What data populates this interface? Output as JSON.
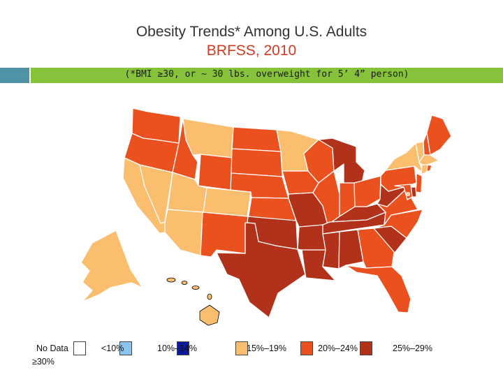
{
  "title": {
    "line1": "Obesity Trends* Among U.S. Adults",
    "line2": "BRFSS, 2010",
    "line2_color": "#d03a1f"
  },
  "subtitle": "(*BMI ≥30, or ~ 30 lbs. overweight for 5’ 4” person)",
  "colors": {
    "no_data": "#ffffff",
    "lt10": "#8cc4f0",
    "c10_14": "#0b1aa0",
    "c15_19": "#fbbd6e",
    "c20_24": "#eb501f",
    "c25_29": "#b1311a",
    "state_border": "#ffffff"
  },
  "legend": [
    {
      "label": "No Data",
      "class": "no_data"
    },
    {
      "label": "<10%",
      "class": "lt10"
    },
    {
      "label": "10%–14%",
      "class": "c10_14"
    },
    {
      "label": "15%–19%",
      "class": "c15_19"
    },
    {
      "label": "20%–24%",
      "class": "c20_24"
    },
    {
      "label": "25%–29%",
      "class": "c25_29"
    }
  ],
  "legend_note": "≥30%",
  "states": {
    "WA": "c20_24",
    "OR": "c20_24",
    "CA": "c15_19",
    "NV": "c15_19",
    "ID": "c20_24",
    "MT": "c15_19",
    "WY": "c20_24",
    "UT": "c15_19",
    "AZ": "c15_19",
    "CO": "c15_19",
    "NM": "c20_24",
    "ND": "c20_24",
    "SD": "c20_24",
    "NE": "c20_24",
    "KS": "c20_24",
    "OK": "c25_29",
    "TX": "c25_29",
    "MN": "c15_19",
    "IA": "c20_24",
    "MO": "c25_29",
    "AR": "c25_29",
    "LA": "c25_29",
    "WI": "c20_24",
    "IL": "c20_24",
    "MI": "c25_29",
    "IN": "c20_24",
    "OH": "c20_24",
    "KY": "c25_29",
    "TN": "c25_29",
    "MS": "c25_29",
    "AL": "c25_29",
    "GA": "c20_24",
    "FL": "c20_24",
    "SC": "c25_29",
    "NC": "c20_24",
    "VA": "c20_24",
    "WV": "c25_29",
    "PA": "c20_24",
    "NY": "c15_19",
    "VT": "c15_19",
    "NH": "c20_24",
    "ME": "c20_24",
    "MA": "c15_19",
    "CT": "c15_19",
    "RI": "c20_24",
    "NJ": "c20_24",
    "DE": "c25_29",
    "MD": "c20_24",
    "DC": "c15_19",
    "AK": "c15_19",
    "HI": "c15_19"
  }
}
